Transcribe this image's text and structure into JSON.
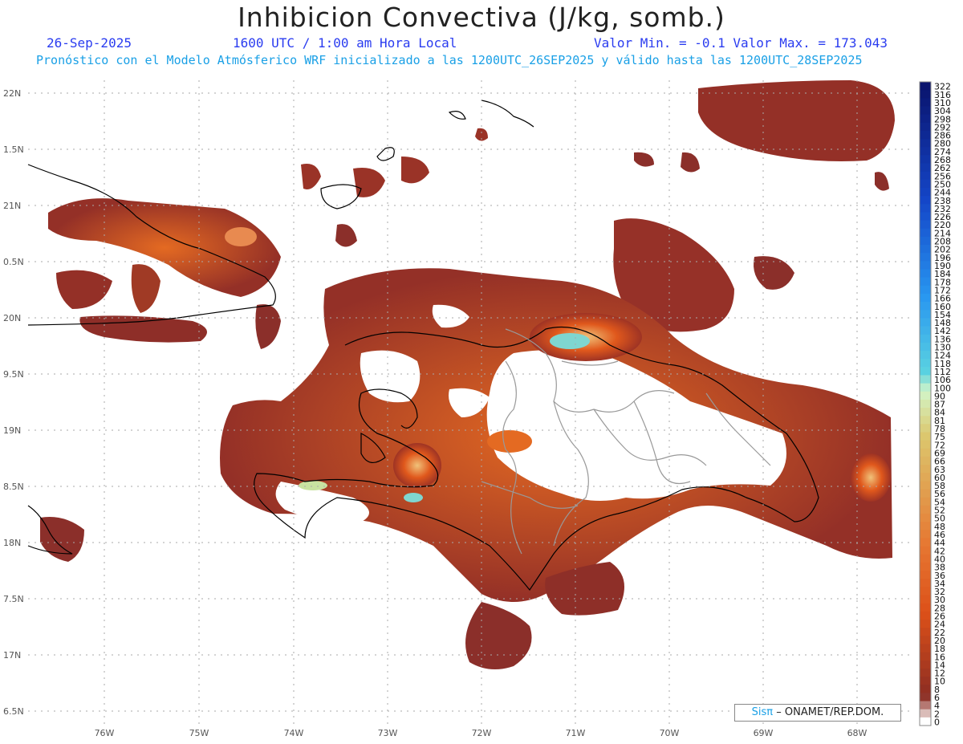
{
  "header": {
    "title": "Inhibicion Convectiva (J/kg, somb.)",
    "date": "26-Sep-2025",
    "time": "1600 UTC / 1:00 am Hora Local",
    "minmax": "Valor Min. = -0.1  Valor Max. = 173.043",
    "forecast": "Pronóstico con el Modelo Atmósferico WRF inicializado a las 1200UTC_26SEP2025 y válido hasta las  1200UTC_28SEP2025"
  },
  "axes": {
    "lat_labels": [
      "22N",
      "1.5N",
      "21N",
      "0.5N",
      "20N",
      "9.5N",
      "19N",
      "8.5N",
      "18N",
      "7.5N",
      "17N",
      "6.5N"
    ],
    "lon_labels": [
      "76W",
      "75W",
      "74W",
      "73W",
      "72W",
      "71W",
      "70W",
      "69W",
      "68W"
    ]
  },
  "colorbar": {
    "labels": [
      "322",
      "316",
      "310",
      "304",
      "298",
      "292",
      "286",
      "280",
      "274",
      "268",
      "262",
      "256",
      "250",
      "244",
      "238",
      "232",
      "226",
      "220",
      "214",
      "208",
      "202",
      "196",
      "190",
      "184",
      "178",
      "172",
      "166",
      "160",
      "154",
      "148",
      "142",
      "136",
      "130",
      "124",
      "118",
      "112",
      "106",
      "100",
      "90",
      "87",
      "84",
      "81",
      "78",
      "75",
      "72",
      "69",
      "66",
      "63",
      "60",
      "58",
      "56",
      "54",
      "52",
      "50",
      "48",
      "46",
      "44",
      "42",
      "40",
      "38",
      "36",
      "34",
      "32",
      "30",
      "28",
      "26",
      "24",
      "22",
      "20",
      "18",
      "16",
      "14",
      "12",
      "10",
      "8",
      "6",
      "4",
      "2",
      "0"
    ]
  },
  "credit": {
    "sis": "Sisπ",
    "text": "– ONAMET/REP.DOM."
  },
  "colors": {
    "low": "#8b2f2a",
    "mid": "#e0581c",
    "high": "#f0b060",
    "cyan": "#7fd6d0"
  }
}
